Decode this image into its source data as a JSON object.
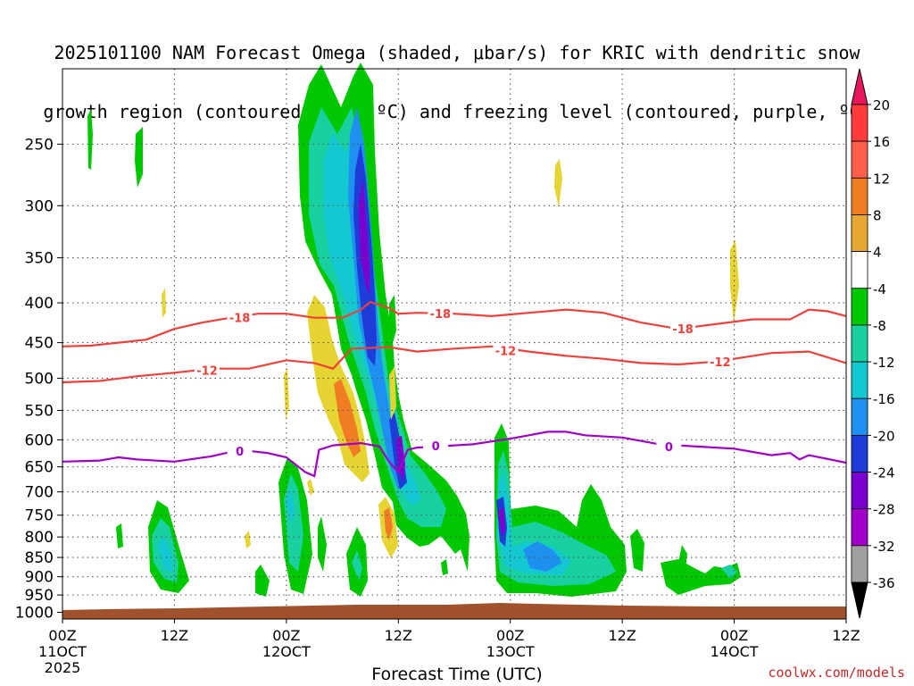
{
  "title": {
    "line1": "2025101100 NAM Forecast Omega (shaded, μbar/s) for KRIC with dendritic snow",
    "line2": "growth region (contoured, red, ºC) and freezing level (contoured, purple, ºC)"
  },
  "credit": "coolwx.com/models",
  "chart_data": {
    "type": "heatmap",
    "xlabel": "Forecast Time (UTC)",
    "ylabel": "",
    "x_ticks": [
      {
        "hour": 0,
        "lines": [
          "00Z",
          "11OCT",
          "2025"
        ]
      },
      {
        "hour": 12,
        "lines": [
          "12Z"
        ]
      },
      {
        "hour": 24,
        "lines": [
          "00Z",
          "12OCT"
        ]
      },
      {
        "hour": 36,
        "lines": [
          "12Z"
        ]
      },
      {
        "hour": 48,
        "lines": [
          "00Z",
          "13OCT"
        ]
      },
      {
        "hour": 60,
        "lines": [
          "12Z"
        ]
      },
      {
        "hour": 72,
        "lines": [
          "00Z",
          "14OCT"
        ]
      },
      {
        "hour": 84,
        "lines": [
          "12Z"
        ]
      }
    ],
    "y_ticks": [
      250,
      300,
      350,
      400,
      450,
      500,
      550,
      600,
      650,
      700,
      750,
      800,
      850,
      900,
      950,
      1000
    ],
    "xlim": [
      0,
      84
    ],
    "ylim": [
      1020,
      200
    ],
    "grid": true,
    "colorbar": {
      "labels": [
        "20",
        "16",
        "12",
        "8",
        "4",
        "-4",
        "-8",
        "-12",
        "-16",
        "-20",
        "-24",
        "-28",
        "-32",
        "-36"
      ],
      "colors": [
        "#e8175d",
        "#ff3b3b",
        "#ff5f4a",
        "#f07d24",
        "#e6a832",
        "#ffffff",
        "#00c800",
        "#18d0a0",
        "#14c8d2",
        "#1e90f0",
        "#1e3cd8",
        "#7a00d0",
        "#a000c8",
        "#a0a0a0",
        "#000000"
      ]
    },
    "contours": [
      {
        "name": "-18",
        "color": "#f0403a",
        "points": [
          [
            0,
            455
          ],
          [
            3,
            454
          ],
          [
            6,
            450
          ],
          [
            9,
            446
          ],
          [
            12,
            432
          ],
          [
            15,
            424
          ],
          [
            18,
            418
          ],
          [
            21,
            413
          ],
          [
            24,
            413
          ],
          [
            27,
            418
          ],
          [
            30,
            418
          ],
          [
            32,
            408
          ],
          [
            33,
            399
          ],
          [
            35,
            406
          ],
          [
            36,
            413
          ],
          [
            38,
            412
          ],
          [
            42,
            413
          ],
          [
            46,
            416
          ],
          [
            50,
            412
          ],
          [
            54,
            408
          ],
          [
            58,
            412
          ],
          [
            62,
            424
          ],
          [
            66,
            432
          ],
          [
            70,
            426
          ],
          [
            74,
            420
          ],
          [
            78,
            420
          ],
          [
            80,
            408
          ],
          [
            82,
            410
          ],
          [
            84,
            416
          ]
        ],
        "labels": [
          {
            "x": 19,
            "y": 418,
            "text": "-18"
          },
          {
            "x": 40.5,
            "y": 413,
            "text": "-18"
          },
          {
            "x": 66.5,
            "y": 432,
            "text": "-18"
          }
        ]
      },
      {
        "name": "-12",
        "color": "#f0403a",
        "points": [
          [
            0,
            506
          ],
          [
            4,
            504
          ],
          [
            8,
            497
          ],
          [
            12,
            492
          ],
          [
            16,
            486
          ],
          [
            20,
            486
          ],
          [
            24,
            474
          ],
          [
            27,
            478
          ],
          [
            29,
            486
          ],
          [
            31,
            458
          ],
          [
            35,
            456
          ],
          [
            38,
            462
          ],
          [
            42,
            458
          ],
          [
            46,
            455
          ],
          [
            50,
            462
          ],
          [
            54,
            468
          ],
          [
            58,
            472
          ],
          [
            62,
            478
          ],
          [
            66,
            480
          ],
          [
            70,
            476
          ],
          [
            72,
            472
          ],
          [
            76,
            464
          ],
          [
            80,
            462
          ],
          [
            84,
            478
          ]
        ],
        "labels": [
          {
            "x": 15.5,
            "y": 488,
            "text": "-12"
          },
          {
            "x": 47.5,
            "y": 461,
            "text": "-12"
          },
          {
            "x": 70.5,
            "y": 476,
            "text": "-12"
          }
        ]
      },
      {
        "name": "0",
        "color": "#a000c8",
        "points": [
          [
            0,
            640
          ],
          [
            4,
            638
          ],
          [
            6,
            632
          ],
          [
            8,
            636
          ],
          [
            12,
            640
          ],
          [
            16,
            630
          ],
          [
            18,
            622
          ],
          [
            20,
            620
          ],
          [
            22,
            624
          ],
          [
            24,
            632
          ],
          [
            26,
            660
          ],
          [
            27,
            668
          ],
          [
            27.5,
            618
          ],
          [
            29,
            610
          ],
          [
            32,
            606
          ],
          [
            34,
            612
          ],
          [
            35,
            640
          ],
          [
            36,
            660
          ],
          [
            37,
            618
          ],
          [
            38,
            614
          ],
          [
            40,
            612
          ],
          [
            44,
            608
          ],
          [
            48,
            598
          ],
          [
            50,
            592
          ],
          [
            52,
            586
          ],
          [
            54,
            586
          ],
          [
            56,
            592
          ],
          [
            60,
            596
          ],
          [
            64,
            608
          ],
          [
            68,
            612
          ],
          [
            72,
            616
          ],
          [
            74,
            622
          ],
          [
            76,
            628
          ],
          [
            78,
            624
          ],
          [
            79,
            636
          ],
          [
            80,
            628
          ],
          [
            84,
            642
          ]
        ],
        "labels": [
          {
            "x": 19,
            "y": 620,
            "text": "0"
          },
          {
            "x": 40,
            "y": 611,
            "text": "0"
          },
          {
            "x": 65,
            "y": 612,
            "text": "0"
          }
        ]
      }
    ]
  }
}
